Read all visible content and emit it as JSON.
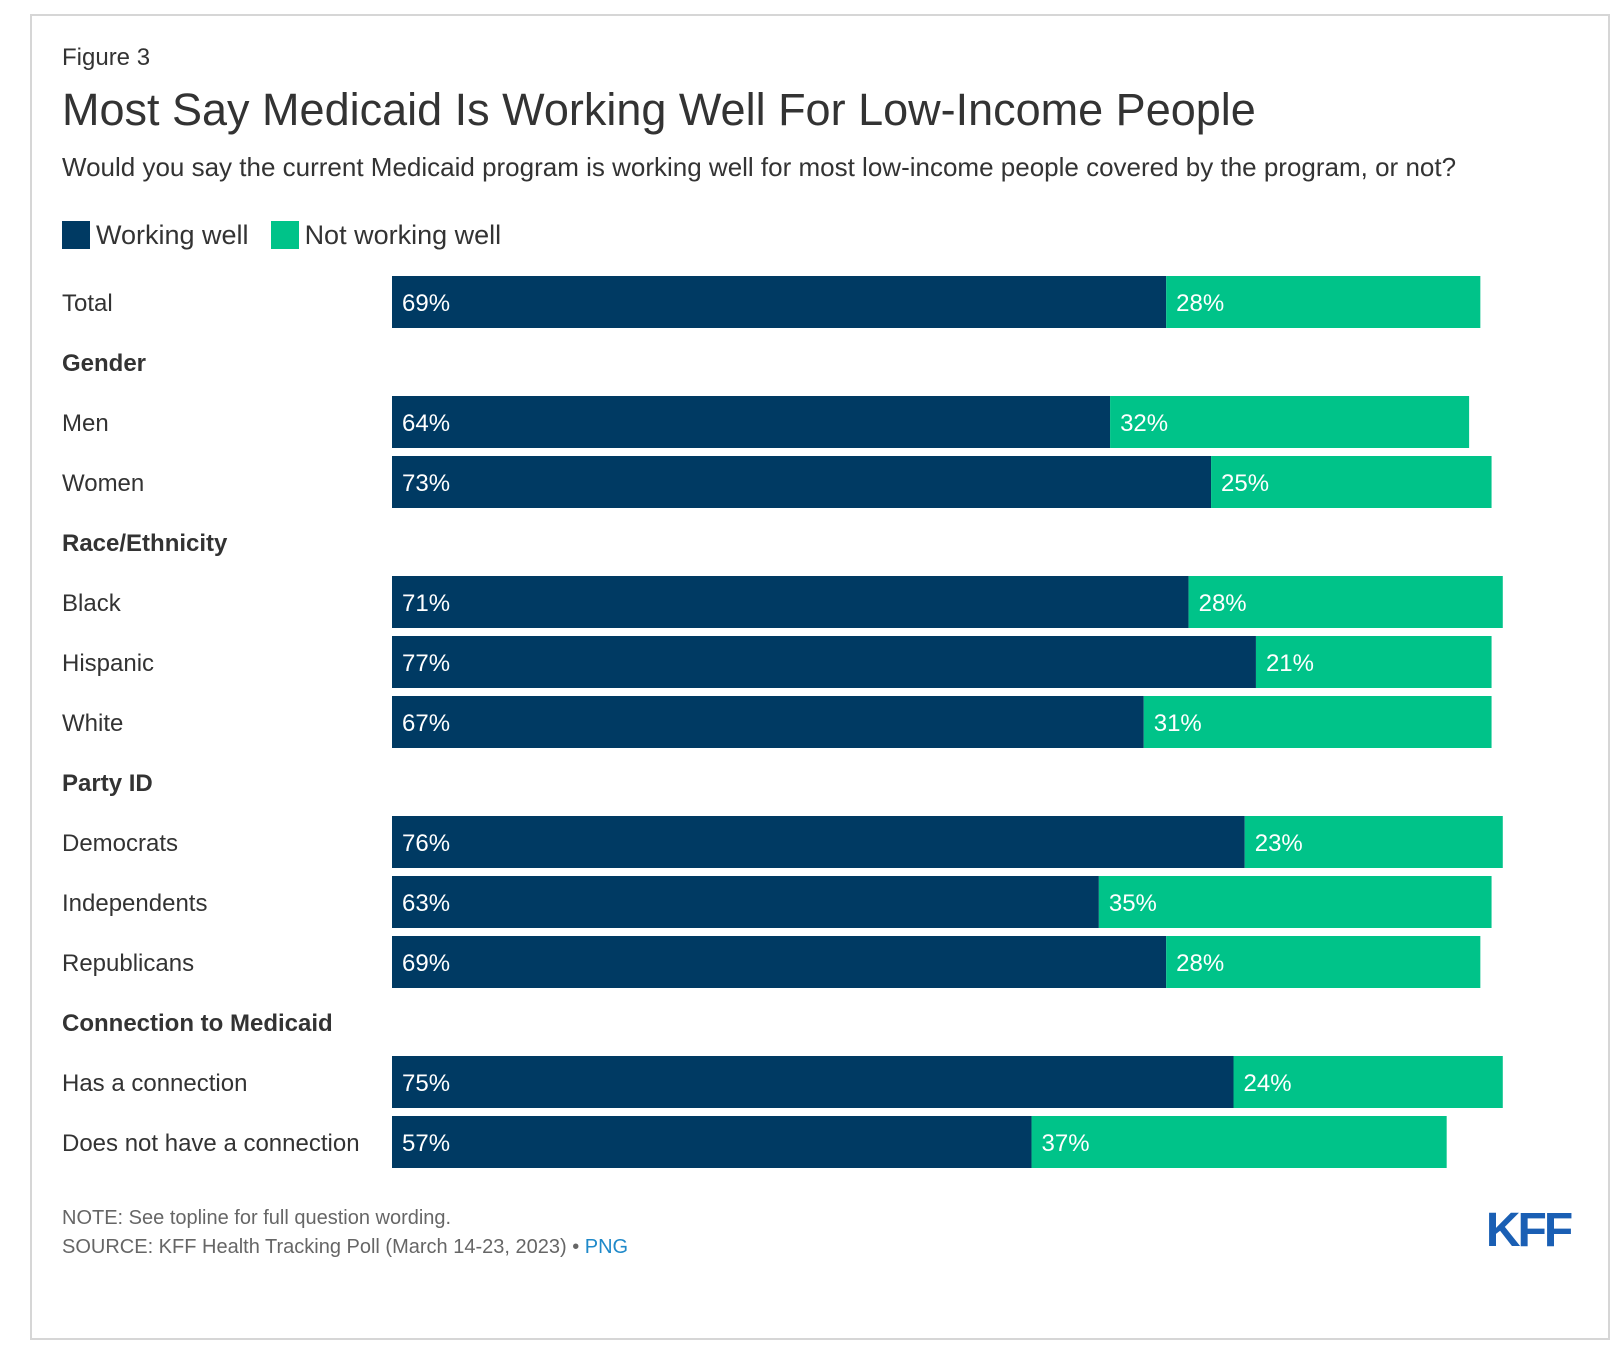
{
  "figure_label": "Figure 3",
  "title": "Most Say Medicaid Is Working Well For Low-Income People",
  "subtitle": "Would you say the current Medicaid program is working well for most low-income people covered by the program, or not?",
  "colors": {
    "working": "#003a63",
    "not_working": "#00c389",
    "text": "#333333",
    "footer": "#666666",
    "link": "#1f89c9",
    "logo": "#1a5fb4"
  },
  "legend": [
    {
      "label": "Working well",
      "color": "#003a63"
    },
    {
      "label": "Not working well",
      "color": "#00c389"
    }
  ],
  "chart_data": {
    "type": "bar",
    "orientation": "horizontal",
    "stacked": true,
    "value_format": "percent",
    "xlim": [
      0,
      100
    ],
    "grid": false,
    "legend_placement": "top-left",
    "rows": [
      {
        "kind": "category",
        "label": "Total",
        "working": 69,
        "not_working": 28
      },
      {
        "kind": "header",
        "label": "Gender"
      },
      {
        "kind": "category",
        "label": "Men",
        "working": 64,
        "not_working": 32
      },
      {
        "kind": "category",
        "label": "Women",
        "working": 73,
        "not_working": 25
      },
      {
        "kind": "header",
        "label": "Race/Ethnicity"
      },
      {
        "kind": "category",
        "label": "Black",
        "working": 71,
        "not_working": 28
      },
      {
        "kind": "category",
        "label": "Hispanic",
        "working": 77,
        "not_working": 21
      },
      {
        "kind": "category",
        "label": "White",
        "working": 67,
        "not_working": 31
      },
      {
        "kind": "header",
        "label": "Party ID"
      },
      {
        "kind": "category",
        "label": "Democrats",
        "working": 76,
        "not_working": 23
      },
      {
        "kind": "category",
        "label": "Independents",
        "working": 63,
        "not_working": 35
      },
      {
        "kind": "category",
        "label": "Republicans",
        "working": 69,
        "not_working": 28
      },
      {
        "kind": "header",
        "label": "Connection to Medicaid"
      },
      {
        "kind": "category",
        "label": "Has a connection",
        "working": 75,
        "not_working": 24
      },
      {
        "kind": "category",
        "label": "Does not have a connection",
        "working": 57,
        "not_working": 37
      }
    ]
  },
  "footer": {
    "note": "NOTE: See topline for full question wording.",
    "source": "SOURCE: KFF Health Tracking Poll (March 14-23, 2023)",
    "separator": " • ",
    "link": "PNG"
  },
  "logo_text": "KFF"
}
